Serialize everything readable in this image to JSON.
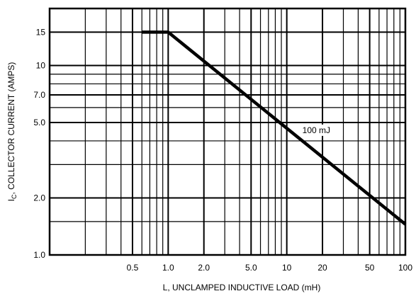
{
  "chart_data": {
    "type": "line",
    "title": "",
    "xlabel": "L, UNCLAMPED INDUCTIVE LOAD (mH)",
    "ylabel": "IC, COLLECTOR CURRENT (AMPS)",
    "ylabel_parts": {
      "main": "I",
      "sub": "C",
      "rest": ", COLLECTOR CURRENT (AMPS)"
    },
    "x_scale": "log",
    "y_scale": "log",
    "xlim": [
      0.1,
      100
    ],
    "ylim": [
      1.0,
      20
    ],
    "x_ticks": [
      {
        "value": 0.5,
        "label": "0.5"
      },
      {
        "value": 1.0,
        "label": "1.0"
      },
      {
        "value": 2.0,
        "label": "2.0"
      },
      {
        "value": 5.0,
        "label": "5.0"
      },
      {
        "value": 10,
        "label": "10"
      },
      {
        "value": 20,
        "label": "20"
      },
      {
        "value": 50,
        "label": "50"
      },
      {
        "value": 100,
        "label": "100"
      }
    ],
    "y_ticks": [
      {
        "value": 1.0,
        "label": "1.0"
      },
      {
        "value": 2.0,
        "label": "2.0"
      },
      {
        "value": 5.0,
        "label": "5.0"
      },
      {
        "value": 7.0,
        "label": "7.0"
      },
      {
        "value": 10,
        "label": "10"
      },
      {
        "value": 15,
        "label": "15"
      }
    ],
    "grid": true,
    "series": [
      {
        "name": "100 mJ",
        "x": [
          0.6,
          1.0,
          100
        ],
        "y": [
          15,
          15,
          1.45
        ]
      }
    ],
    "annotations": [
      {
        "text": "100 mJ",
        "x": 10,
        "y": 4.4
      }
    ]
  }
}
